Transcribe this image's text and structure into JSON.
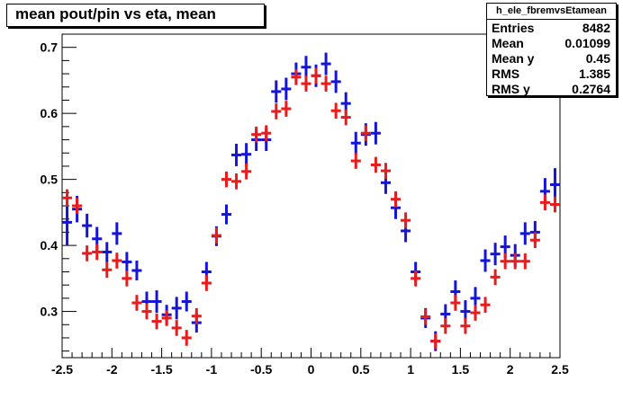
{
  "title": "mean pout/pin vs eta, mean",
  "stats": {
    "name": "h_ele_fbremvsEtamean",
    "rows": [
      {
        "label": "Entries",
        "value": "8482"
      },
      {
        "label": "Mean",
        "value": "0.01099"
      },
      {
        "label": "Mean y",
        "value": "0.45"
      },
      {
        "label": "RMS",
        "value": "1.385"
      },
      {
        "label": "RMS y",
        "value": "0.2764"
      }
    ]
  },
  "colors": {
    "series_1": "#1515d6",
    "series_2": "#e81c1c",
    "axis": "#000000",
    "frame_shadow": "#000000"
  },
  "chart_data": {
    "type": "scatter",
    "title": "mean pout/pin vs eta, mean",
    "xlabel": "",
    "ylabel": "",
    "xlim": [
      -2.5,
      2.5
    ],
    "ylim": [
      0.23,
      0.72
    ],
    "grid": false,
    "legend": "none",
    "x_ticks": [
      -2.5,
      -2,
      -1.5,
      -1,
      -0.5,
      0,
      0.5,
      1,
      1.5,
      2,
      2.5
    ],
    "x_tick_labels": [
      "-2.5",
      "-2",
      "-1.5",
      "-1",
      "-0.5",
      "0",
      "0.5",
      "1",
      "1.5",
      "2",
      "2.5"
    ],
    "y_ticks": [
      0.3,
      0.4,
      0.5,
      0.6,
      0.7
    ],
    "y_tick_labels": [
      "0.3",
      "0.4",
      "0.5",
      "0.6",
      "0.7"
    ],
    "bin_width": 0.1,
    "series": [
      {
        "color": "#1515d6",
        "x": [
          -2.45,
          -2.35,
          -2.25,
          -2.15,
          -2.05,
          -1.95,
          -1.85,
          -1.75,
          -1.65,
          -1.55,
          -1.45,
          -1.35,
          -1.25,
          -1.15,
          -1.05,
          -0.95,
          -0.85,
          -0.75,
          -0.65,
          -0.55,
          -0.45,
          -0.35,
          -0.25,
          -0.15,
          -0.05,
          0.05,
          0.15,
          0.25,
          0.35,
          0.45,
          0.55,
          0.65,
          0.75,
          0.85,
          0.95,
          1.05,
          1.15,
          1.25,
          1.35,
          1.45,
          1.55,
          1.65,
          1.75,
          1.85,
          1.95,
          2.05,
          2.15,
          2.25,
          2.35,
          2.45
        ],
        "y": [
          0.435,
          0.455,
          0.43,
          0.41,
          0.39,
          0.418,
          0.375,
          0.362,
          0.315,
          0.315,
          0.295,
          0.305,
          0.315,
          0.283,
          0.36,
          0.414,
          0.447,
          0.537,
          0.538,
          0.56,
          0.56,
          0.633,
          0.637,
          0.66,
          0.67,
          0.657,
          0.675,
          0.648,
          0.615,
          0.555,
          0.568,
          0.57,
          0.495,
          0.457,
          0.422,
          0.36,
          0.29,
          0.255,
          0.296,
          0.33,
          0.3,
          0.32,
          0.377,
          0.387,
          0.398,
          0.385,
          0.418,
          0.42,
          0.482,
          0.492
        ],
        "yerr": [
          0.035,
          0.02,
          0.018,
          0.018,
          0.015,
          0.017,
          0.015,
          0.015,
          0.015,
          0.017,
          0.015,
          0.017,
          0.015,
          0.015,
          0.015,
          0.015,
          0.015,
          0.017,
          0.017,
          0.017,
          0.017,
          0.017,
          0.017,
          0.017,
          0.017,
          0.017,
          0.017,
          0.017,
          0.017,
          0.017,
          0.017,
          0.017,
          0.017,
          0.017,
          0.017,
          0.015,
          0.015,
          0.015,
          0.015,
          0.017,
          0.017,
          0.017,
          0.017,
          0.017,
          0.017,
          0.017,
          0.017,
          0.017,
          0.02,
          0.025
        ]
      },
      {
        "color": "#e81c1c",
        "x": [
          -2.45,
          -2.35,
          -2.25,
          -2.15,
          -2.05,
          -1.95,
          -1.85,
          -1.75,
          -1.65,
          -1.55,
          -1.45,
          -1.35,
          -1.25,
          -1.15,
          -1.05,
          -0.95,
          -0.85,
          -0.75,
          -0.65,
          -0.55,
          -0.45,
          -0.35,
          -0.25,
          -0.15,
          -0.05,
          0.05,
          0.15,
          0.25,
          0.35,
          0.45,
          0.55,
          0.65,
          0.75,
          0.85,
          0.95,
          1.05,
          1.15,
          1.25,
          1.35,
          1.45,
          1.55,
          1.65,
          1.75,
          1.85,
          1.95,
          2.05,
          2.15,
          2.25,
          2.35,
          2.45
        ],
        "y": [
          0.472,
          0.46,
          0.388,
          0.39,
          0.363,
          0.377,
          0.35,
          0.313,
          0.3,
          0.285,
          0.29,
          0.275,
          0.26,
          0.293,
          0.343,
          0.415,
          0.5,
          0.497,
          0.512,
          0.568,
          0.57,
          0.603,
          0.607,
          0.655,
          0.645,
          0.657,
          0.645,
          0.604,
          0.594,
          0.528,
          0.57,
          0.522,
          0.513,
          0.47,
          0.438,
          0.35,
          0.292,
          0.255,
          0.278,
          0.313,
          0.278,
          0.298,
          0.31,
          0.352,
          0.376,
          0.376,
          0.376,
          0.408,
          0.465,
          0.462
        ],
        "yerr": [
          0.013,
          0.012,
          0.012,
          0.012,
          0.012,
          0.012,
          0.012,
          0.012,
          0.012,
          0.012,
          0.012,
          0.012,
          0.012,
          0.012,
          0.012,
          0.012,
          0.012,
          0.012,
          0.012,
          0.012,
          0.012,
          0.012,
          0.012,
          0.012,
          0.012,
          0.012,
          0.012,
          0.012,
          0.012,
          0.012,
          0.012,
          0.012,
          0.012,
          0.012,
          0.012,
          0.012,
          0.012,
          0.012,
          0.012,
          0.012,
          0.012,
          0.012,
          0.012,
          0.012,
          0.012,
          0.012,
          0.012,
          0.012,
          0.012,
          0.012
        ]
      }
    ]
  }
}
